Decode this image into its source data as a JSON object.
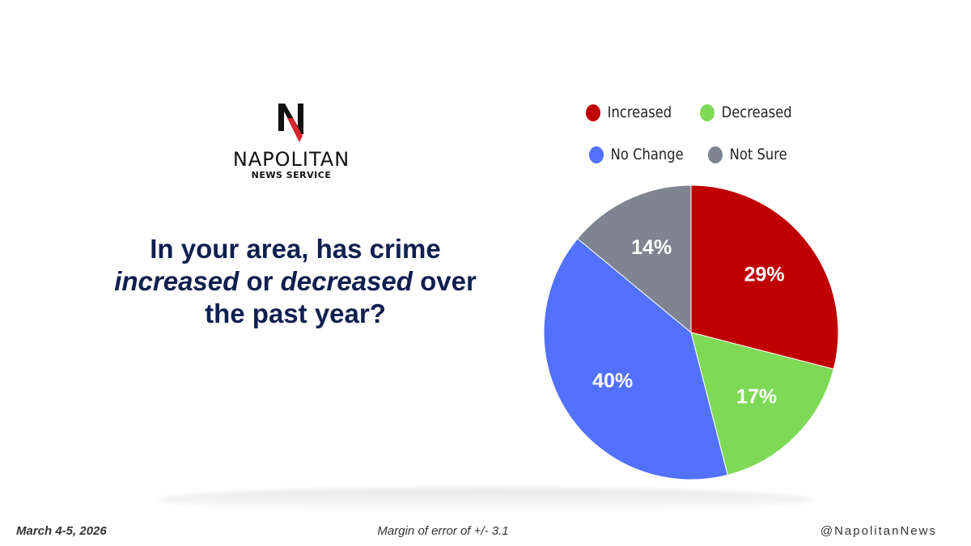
{
  "brand": {
    "name": "NAPOLITAN",
    "sub": "NEWS SERVICE"
  },
  "question": {
    "line1": "In your area, has crime",
    "increased": "increased",
    "or": " or ",
    "decreased": "decreased",
    "over": " over",
    "line3": "the past year?"
  },
  "footer": {
    "date": "March 4-5, 2026",
    "margin": "Margin of error of +/- 3.1",
    "handle": "@NapolitanNews"
  },
  "colors": {
    "increased": "#c00000",
    "decreased": "#7ed957",
    "no_change": "#5271ff",
    "not_sure": "#7f8491",
    "question_text": "#0f1f4f"
  },
  "chart_data": {
    "type": "pie",
    "title": "In your area, has crime increased or decreased over the past year?",
    "legend_position": "top",
    "slices": [
      {
        "label": "Increased",
        "value": 29,
        "display": "29%",
        "color": "#c00000"
      },
      {
        "label": "Decreased",
        "value": 17,
        "display": "17%",
        "color": "#7ed957"
      },
      {
        "label": "No Change",
        "value": 40,
        "display": "40%",
        "color": "#5271ff"
      },
      {
        "label": "Not Sure",
        "value": 14,
        "display": "14%",
        "color": "#7f8491"
      }
    ]
  }
}
